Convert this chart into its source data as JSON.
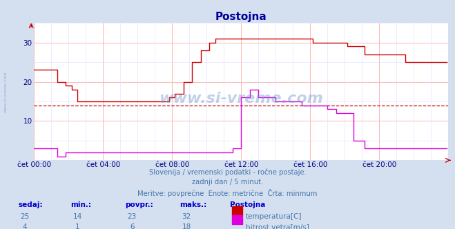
{
  "title": "Postojna",
  "bg_color": "#d4dff0",
  "plot_bg_color": "#ffffff",
  "grid_major_color": "#ffaaaa",
  "grid_minor_color": "#ddddff",
  "temp_color": "#cc0000",
  "wind_color": "#dd00dd",
  "dashed_line_value": 14,
  "dashed_line_color": "#cc0000",
  "axis_label_color": "#000080",
  "title_color": "#000099",
  "text_color": "#4477aa",
  "legend_color": "#0000cc",
  "xlim": [
    0,
    288
  ],
  "ylim": [
    0,
    35
  ],
  "yticks": [
    10,
    20,
    30
  ],
  "xtick_labels": [
    "čet 00:00",
    "čet 04:00",
    "čet 08:00",
    "čet 12:00",
    "čet 16:00",
    "čet 20:00"
  ],
  "xtick_positions": [
    0,
    48,
    96,
    144,
    192,
    240
  ],
  "subtitle1": "Slovenija / vremenski podatki - ročne postaje.",
  "subtitle2": "zadnji dan / 5 minut.",
  "subtitle3": "Meritve: povprečne  Enote: metrične  Črta: minmum",
  "stats_temp": [
    25,
    14,
    23,
    32
  ],
  "stats_wind": [
    4,
    1,
    6,
    18
  ],
  "station_name": "Postojna",
  "legend_temp": "temperatura[C]",
  "legend_wind": "hitrost vetra[m/s]"
}
